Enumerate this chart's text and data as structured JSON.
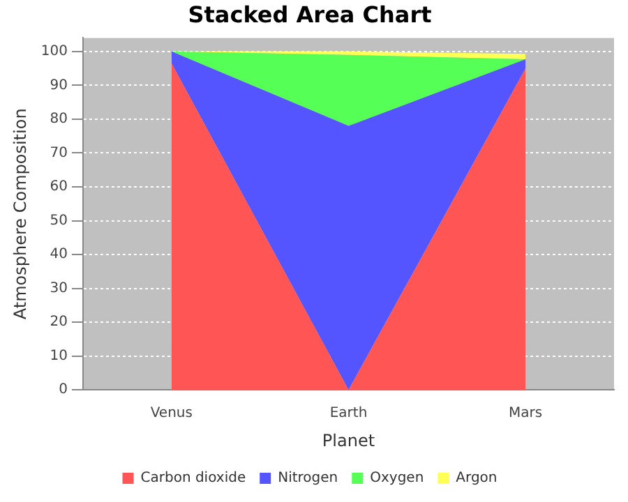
{
  "chart_data": {
    "type": "area",
    "stacked": true,
    "title": "Stacked Area Chart",
    "xlabel": "Planet",
    "ylabel": "Atmosphere Composition",
    "categories": [
      "Venus",
      "Earth",
      "Mars"
    ],
    "series": [
      {
        "name": "Carbon dioxide",
        "color": "#ff5555",
        "values": [
          96.5,
          0,
          95
        ]
      },
      {
        "name": "Nitrogen",
        "color": "#5555ff",
        "values": [
          3.5,
          78,
          2.7
        ]
      },
      {
        "name": "Oxygen",
        "color": "#55ff55",
        "values": [
          0,
          21,
          0
        ]
      },
      {
        "name": "Argon",
        "color": "#ffff55",
        "values": [
          0,
          1,
          1.6
        ]
      }
    ],
    "ylim": [
      0,
      104
    ],
    "yticks": [
      0,
      10,
      20,
      30,
      40,
      50,
      60,
      70,
      80,
      90,
      100
    ],
    "grid": "y",
    "legend": "bottom"
  }
}
